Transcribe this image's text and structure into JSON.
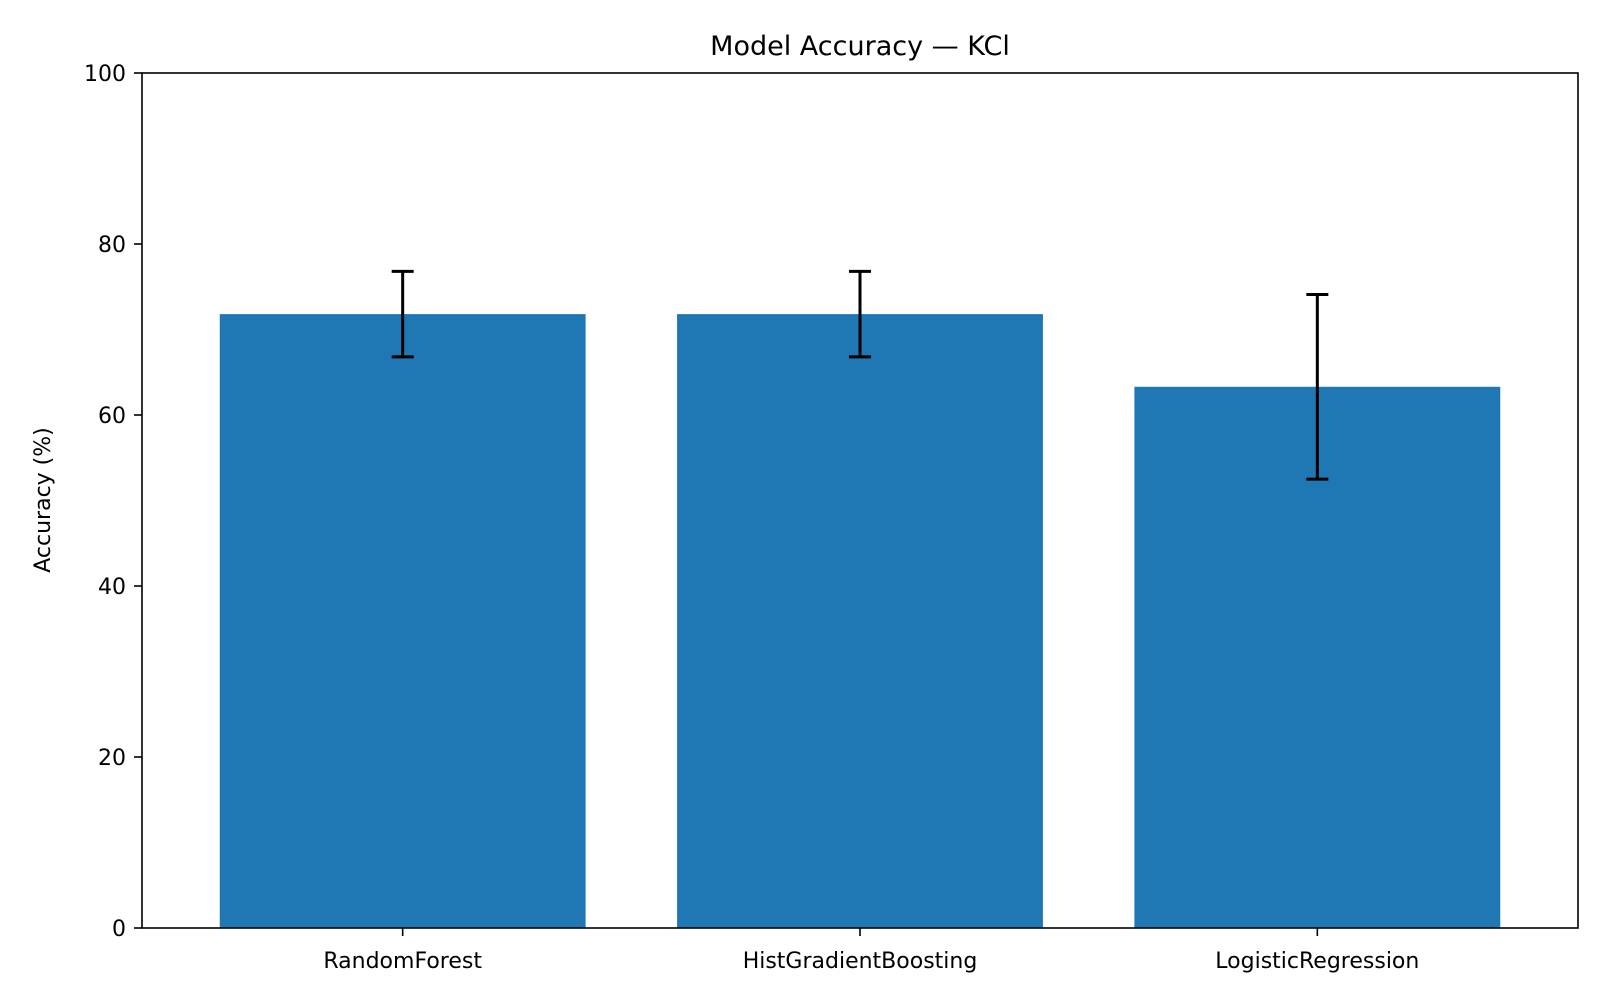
{
  "chart_data": {
    "type": "bar",
    "title": "Model Accuracy — KCl",
    "xlabel": "",
    "ylabel": "Accuracy (%)",
    "categories": [
      "RandomForest",
      "HistGradientBoosting",
      "LogisticRegression"
    ],
    "values": [
      71.8,
      71.8,
      63.3
    ],
    "error_bars": [
      {
        "low": 66.8,
        "high": 76.8
      },
      {
        "low": 66.8,
        "high": 76.8
      },
      {
        "low": 52.5,
        "high": 74.1
      }
    ],
    "ylim": [
      0,
      100
    ],
    "yticks": [
      0,
      20,
      40,
      60,
      80,
      100
    ],
    "grid": false,
    "legend": "none",
    "colors": {
      "bar": "#1f77b4",
      "error_bar": "#000000",
      "axis": "#000000"
    }
  }
}
